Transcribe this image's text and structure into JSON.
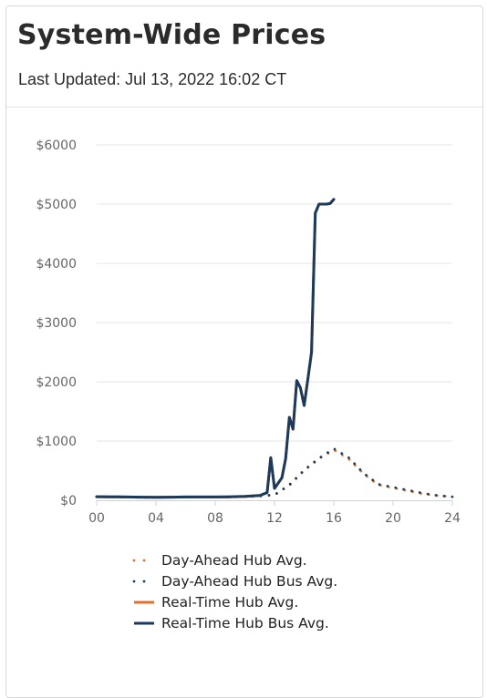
{
  "header": {
    "title": "System-Wide Prices",
    "last_updated": "Last Updated: Jul 13, 2022 16:02 CT"
  },
  "colors": {
    "day_ahead_hub": "#e0702a",
    "day_ahead_bus": "#1b3a5c",
    "real_time_hub": "#e0702a",
    "real_time_bus": "#1b3a5c",
    "grid": "#e6e6e6",
    "axis": "#c9d3e0"
  },
  "chart_data": {
    "type": "line",
    "xlim": [
      0,
      24
    ],
    "ylim": [
      0,
      6000
    ],
    "x_ticks": [
      0,
      4,
      8,
      12,
      16,
      20,
      24
    ],
    "x_tick_labels": [
      "00",
      "04",
      "08",
      "12",
      "16",
      "20",
      "24"
    ],
    "y_ticks": [
      0,
      1000,
      2000,
      3000,
      4000,
      5000,
      6000
    ],
    "y_tick_labels": [
      "$0",
      "$1000",
      "$2000",
      "$3000",
      "$4000",
      "$5000",
      "$6000"
    ],
    "grid": true,
    "legend_position": "bottom",
    "series": [
      {
        "name": "Day-Ahead Hub Avg.",
        "style": "dotted",
        "color": "#e0702a",
        "x": [
          0,
          1,
          2,
          3,
          4,
          5,
          6,
          7,
          8,
          9,
          10,
          11,
          12,
          13,
          14,
          15,
          16,
          17,
          18,
          19,
          20,
          21,
          22,
          23,
          24
        ],
        "y": [
          60,
          55,
          52,
          50,
          50,
          52,
          55,
          55,
          55,
          55,
          60,
          70,
          90,
          250,
          500,
          700,
          850,
          700,
          450,
          260,
          210,
          160,
          110,
          80,
          60
        ]
      },
      {
        "name": "Day-Ahead Hub Bus Avg.",
        "style": "dotted",
        "color": "#1b3a5c",
        "x": [
          0,
          1,
          2,
          3,
          4,
          5,
          6,
          7,
          8,
          9,
          10,
          11,
          12,
          13,
          14,
          15,
          16,
          17,
          18,
          19,
          20,
          21,
          22,
          23,
          24
        ],
        "y": [
          60,
          55,
          52,
          50,
          50,
          52,
          55,
          55,
          55,
          55,
          60,
          70,
          90,
          260,
          510,
          710,
          870,
          720,
          460,
          270,
          220,
          170,
          120,
          80,
          60
        ]
      },
      {
        "name": "Real-Time Hub Avg.",
        "style": "solid",
        "color": "#e0702a",
        "x": [
          0,
          1,
          2,
          3,
          4,
          5,
          6,
          7,
          8,
          9,
          10,
          11,
          11.5,
          11.75,
          12,
          12.5,
          12.75,
          13,
          13.25,
          13.5,
          13.75,
          14,
          14.25,
          14.5,
          14.75,
          15,
          15.25,
          15.5,
          15.75,
          16
        ],
        "y": [
          60,
          58,
          55,
          52,
          50,
          52,
          55,
          55,
          55,
          58,
          65,
          80,
          130,
          720,
          200,
          380,
          700,
          1400,
          1200,
          2020,
          1900,
          1600,
          2050,
          2500,
          4850,
          5000,
          5000,
          5000,
          5010,
          5080
        ]
      },
      {
        "name": "Real-Time Hub Bus Avg.",
        "style": "solid",
        "color": "#1b3a5c",
        "x": [
          0,
          1,
          2,
          3,
          4,
          5,
          6,
          7,
          8,
          9,
          10,
          11,
          11.5,
          11.75,
          12,
          12.5,
          12.75,
          13,
          13.25,
          13.5,
          13.75,
          14,
          14.25,
          14.5,
          14.75,
          15,
          15.25,
          15.5,
          15.75,
          16
        ],
        "y": [
          60,
          58,
          55,
          52,
          50,
          52,
          55,
          55,
          55,
          58,
          65,
          80,
          130,
          720,
          200,
          380,
          700,
          1400,
          1200,
          2020,
          1900,
          1600,
          2050,
          2500,
          4850,
          5000,
          5000,
          5000,
          5010,
          5080
        ]
      }
    ]
  }
}
